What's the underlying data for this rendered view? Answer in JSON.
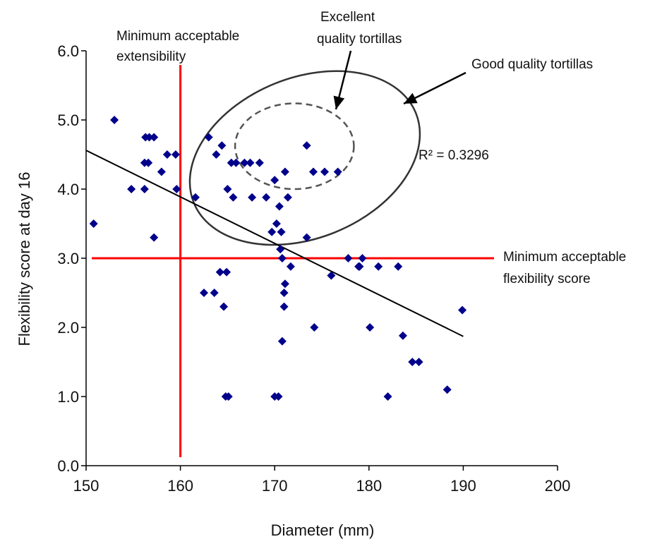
{
  "chart_data": {
    "type": "scatter",
    "xlabel": "Diameter (mm)",
    "ylabel": "Flexibility score at day 16",
    "xlim": [
      150,
      200
    ],
    "ylim": [
      0,
      6
    ],
    "xticks": [
      150,
      160,
      170,
      180,
      190,
      200
    ],
    "yticks": [
      0,
      1,
      2,
      3,
      4,
      5,
      6
    ],
    "x_tick_labels": [
      "150",
      "160",
      "170",
      "180",
      "190",
      "200"
    ],
    "y_tick_labels": [
      "0.0",
      "1.0",
      "2.0",
      "3.0",
      "4.0",
      "5.0",
      "6.0"
    ],
    "grid": false,
    "marker_color": "#00008B",
    "reference_line_color": "#FF0000",
    "points": [
      [
        150.8,
        3.5
      ],
      [
        153.0,
        5.0
      ],
      [
        154.8,
        4.0
      ],
      [
        156.2,
        4.0
      ],
      [
        156.3,
        4.75
      ],
      [
        156.2,
        4.38
      ],
      [
        156.7,
        4.75
      ],
      [
        156.6,
        4.38
      ],
      [
        157.2,
        4.75
      ],
      [
        157.2,
        3.3
      ],
      [
        158.0,
        4.25
      ],
      [
        158.6,
        4.5
      ],
      [
        159.5,
        4.5
      ],
      [
        159.6,
        4.0
      ],
      [
        161.6,
        3.88
      ],
      [
        162.5,
        2.5
      ],
      [
        163.0,
        4.75
      ],
      [
        163.6,
        2.5
      ],
      [
        163.8,
        4.5
      ],
      [
        164.2,
        2.8
      ],
      [
        164.4,
        4.63
      ],
      [
        164.6,
        2.3
      ],
      [
        164.9,
        2.8
      ],
      [
        164.8,
        1.0
      ],
      [
        165.1,
        1.0
      ],
      [
        165.0,
        4.0
      ],
      [
        165.4,
        4.38
      ],
      [
        165.6,
        3.88
      ],
      [
        165.9,
        4.38
      ],
      [
        166.8,
        4.38
      ],
      [
        167.4,
        4.38
      ],
      [
        167.6,
        3.88
      ],
      [
        168.4,
        4.38
      ],
      [
        169.1,
        3.88
      ],
      [
        169.7,
        3.38
      ],
      [
        170.0,
        4.13
      ],
      [
        170.0,
        1.0
      ],
      [
        170.2,
        3.5
      ],
      [
        170.4,
        1.0
      ],
      [
        170.5,
        3.75
      ],
      [
        170.7,
        3.38
      ],
      [
        170.6,
        3.13
      ],
      [
        170.8,
        3.0
      ],
      [
        171.1,
        2.63
      ],
      [
        171.0,
        2.5
      ],
      [
        171.0,
        2.3
      ],
      [
        170.8,
        1.8
      ],
      [
        171.1,
        4.25
      ],
      [
        171.4,
        3.88
      ],
      [
        171.7,
        2.88
      ],
      [
        173.4,
        4.63
      ],
      [
        173.4,
        3.3
      ],
      [
        174.1,
        4.25
      ],
      [
        174.2,
        2.0
      ],
      [
        175.3,
        4.25
      ],
      [
        176.0,
        2.75
      ],
      [
        176.7,
        4.25
      ],
      [
        177.8,
        3.0
      ],
      [
        178.9,
        2.88
      ],
      [
        179.0,
        2.88
      ],
      [
        179.3,
        3.0
      ],
      [
        180.1,
        2.0
      ],
      [
        181.0,
        2.88
      ],
      [
        182.0,
        1.0
      ],
      [
        183.1,
        2.88
      ],
      [
        183.6,
        1.88
      ],
      [
        184.6,
        1.5
      ],
      [
        185.3,
        1.5
      ],
      [
        188.3,
        1.1
      ],
      [
        189.9,
        2.25
      ]
    ],
    "trendline": {
      "x": [
        150,
        190
      ],
      "y": [
        4.56,
        1.87
      ],
      "r2_label": "R² = 0.3296"
    },
    "reference_lines": {
      "min_extensibility_x": 160,
      "min_flexibility_y": 3.0
    },
    "ellipses": {
      "good": {
        "cx": 173.2,
        "cy": 4.45,
        "rx": 12.7,
        "ry": 1.16,
        "rot": -22
      },
      "excellent": {
        "cx": 172.1,
        "cy": 4.62,
        "rx": 6.3,
        "ry": 0.62,
        "rot": 0
      }
    },
    "annotations": {
      "min_ext_line1": "Minimum acceptable",
      "min_ext_line2": "extensibility",
      "excellent_line1": "Excellent",
      "excellent_line2": "quality tortillas",
      "good": "Good quality tortillas",
      "min_flex_line1": "Minimum acceptable",
      "min_flex_line2": "flexibility score"
    }
  }
}
